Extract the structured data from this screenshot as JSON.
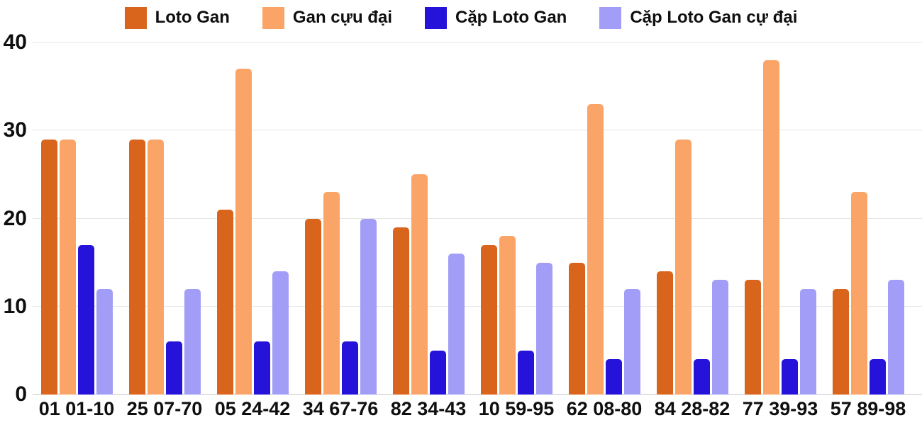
{
  "chart_data": {
    "type": "bar",
    "title": "",
    "xlabel": "",
    "ylabel": "",
    "categories": [
      "01 01-10",
      "25 07-70",
      "05 24-42",
      "34 67-76",
      "82 34-43",
      "10 59-95",
      "62 08-80",
      "84 28-82",
      "77 39-93",
      "57 89-98"
    ],
    "series": [
      {
        "name": "Loto Gan",
        "color": "#d9641c",
        "values": [
          29,
          29,
          21,
          20,
          19,
          17,
          15,
          14,
          13,
          12
        ]
      },
      {
        "name": "Gan cựu đại",
        "color": "#fba467",
        "values": [
          29,
          29,
          37,
          23,
          25,
          18,
          33,
          29,
          38,
          23
        ]
      },
      {
        "name": "Cặp Loto Gan",
        "color": "#2613d9",
        "values": [
          17,
          6,
          6,
          6,
          5,
          5,
          4,
          4,
          4,
          4
        ]
      },
      {
        "name": "Cặp Loto Gan cự đại",
        "color": "#a29df6",
        "values": [
          12,
          12,
          14,
          20,
          16,
          15,
          12,
          13,
          12,
          13
        ]
      }
    ],
    "ylim": [
      0,
      40
    ],
    "yticks": [
      0,
      10,
      20,
      30,
      40
    ],
    "grid": "horizontal",
    "legend_position": "top",
    "colors": {
      "gridline": "#e6e6e6",
      "baseline": "#c8c8c8",
      "text": "#0f0f0f",
      "background": "#ffffff"
    }
  }
}
